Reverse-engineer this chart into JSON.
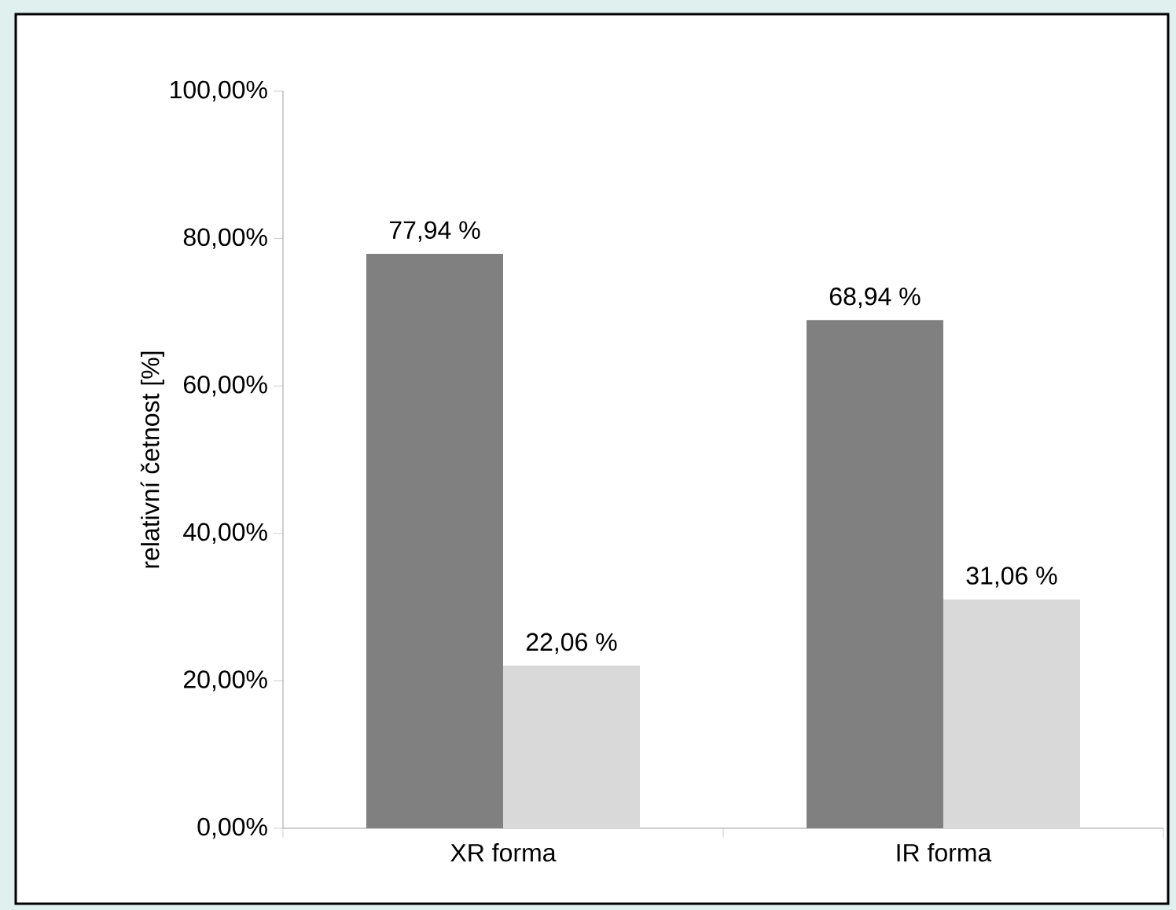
{
  "chart_data": {
    "type": "bar",
    "ylabel": "relativní četnost [%]",
    "categories": [
      "XR forma",
      "IR forma"
    ],
    "series": [
      {
        "color": "#808080",
        "values": [
          77.94,
          68.94
        ],
        "value_labels": [
          "77,94 %",
          "68,94 %"
        ]
      },
      {
        "color": "#d9d9d9",
        "values": [
          22.06,
          31.06
        ],
        "value_labels": [
          "22,06 %",
          "31,06 %"
        ]
      }
    ],
    "ylim": [
      0,
      100
    ],
    "yticks": [
      {
        "value": 0,
        "label": "0,00%"
      },
      {
        "value": 20,
        "label": "20,00%"
      },
      {
        "value": 40,
        "label": "40,00%"
      },
      {
        "value": 60,
        "label": "60,00%"
      },
      {
        "value": 80,
        "label": "80,00%"
      },
      {
        "value": 100,
        "label": "100,00%"
      }
    ]
  }
}
